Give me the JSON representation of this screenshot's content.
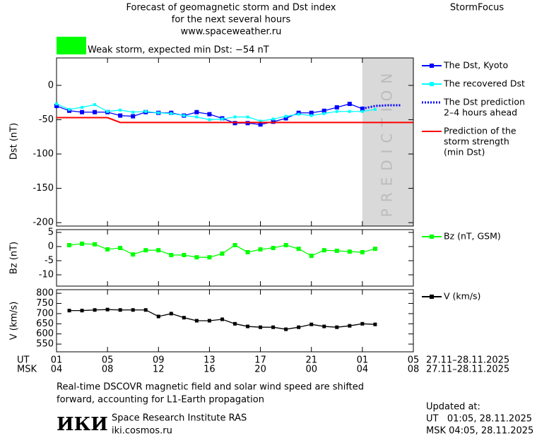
{
  "header": {
    "title_lines": [
      "Forecast of geomagnetic storm and Dst index",
      "for the next several hours",
      "www.spaceweather.ru"
    ],
    "brand": "StormFocus"
  },
  "status": {
    "color": "#00ff00",
    "text": "Weak storm, expected min Dst: −54 nT"
  },
  "chart_data": [
    {
      "type": "line",
      "ylabel": "Dst (nT)",
      "xlim": [
        0,
        28
      ],
      "ylim": [
        -205,
        40
      ],
      "yticks": [
        0,
        -50,
        -100,
        -150,
        -200
      ],
      "shade": {
        "xlim": [
          24,
          28
        ],
        "color": "#d9d9d9",
        "label": "PREDICTION"
      },
      "series": [
        {
          "name": "The Dst, Kyoto",
          "color": "#0000ff",
          "marker_size": 6,
          "x": [
            0,
            1,
            2,
            3,
            4,
            5,
            6,
            7,
            8,
            9,
            10,
            11,
            12,
            13,
            14,
            15,
            16,
            17,
            18,
            19,
            20,
            21,
            22,
            23,
            24
          ],
          "values": [
            -30,
            -37,
            -39,
            -39,
            -39,
            -44,
            -45,
            -39,
            -40,
            -40,
            -44,
            -39,
            -42,
            -48,
            -55,
            -55,
            -57,
            -53,
            -48,
            -40,
            -40,
            -37,
            -32,
            -27,
            -34
          ]
        },
        {
          "name": "The recovered Dst",
          "color": "#00ffff",
          "marker_size": 4,
          "x": [
            0,
            1,
            2,
            3,
            4,
            5,
            6,
            7,
            8,
            9,
            10,
            11,
            12,
            13,
            14,
            15,
            16,
            17,
            18,
            19,
            20,
            21,
            22,
            23,
            24,
            25
          ],
          "values": [
            -27,
            -35,
            -32,
            -28,
            -38,
            -36,
            -39,
            -38,
            -40,
            -41,
            -44,
            -46,
            -50,
            -49,
            -46,
            -46,
            -52,
            -49,
            -45,
            -42,
            -44,
            -41,
            -38,
            -38,
            -38,
            -35
          ]
        },
        {
          "name": [
            "The Dst prediction",
            "2–4 hours ahead"
          ],
          "color": "#0000ff",
          "dashed": true,
          "x": [
            24,
            25,
            26,
            27
          ],
          "values": [
            -34,
            -30,
            -29,
            -29
          ]
        },
        {
          "name": [
            "Prediction of the",
            "storm strength",
            "(min Dst)"
          ],
          "color": "#ff0000",
          "x": [
            0,
            4,
            5,
            28
          ],
          "values": [
            -47,
            -47,
            -54,
            -54
          ]
        }
      ]
    },
    {
      "type": "line",
      "ylabel": "Bz (nT)",
      "xlim": [
        0,
        28
      ],
      "ylim": [
        -14,
        6
      ],
      "yticks": [
        5,
        0,
        -5,
        -10
      ],
      "series": [
        {
          "name": "Bz (nT, GSM)",
          "color": "#00ff00",
          "marker_size": 6,
          "x": [
            1,
            2,
            3,
            4,
            5,
            6,
            7,
            8,
            9,
            10,
            11,
            12,
            13,
            14,
            15,
            16,
            17,
            18,
            19,
            20,
            21,
            22,
            23,
            24,
            25
          ],
          "values": [
            0.5,
            1,
            0.8,
            -1,
            -0.5,
            -2.8,
            -1.3,
            -1.3,
            -3,
            -3,
            -3.8,
            -3.8,
            -2.5,
            0.5,
            -2,
            -1,
            -0.5,
            0.5,
            -0.8,
            -3.3,
            -1.3,
            -1.5,
            -1.8,
            -2,
            -0.8
          ]
        }
      ]
    },
    {
      "type": "line",
      "ylabel": "V (km/s)",
      "xlim": [
        0,
        28
      ],
      "ylim": [
        512,
        818
      ],
      "yticks": [
        800,
        750,
        700,
        650,
        600,
        550
      ],
      "xticks": [
        {
          "value": 0,
          "label": "01"
        },
        {
          "value": 4,
          "label": "05"
        },
        {
          "value": 8,
          "label": "09"
        },
        {
          "value": 12,
          "label": "13"
        },
        {
          "value": 16,
          "label": "17"
        },
        {
          "value": 20,
          "label": "21"
        },
        {
          "value": 24,
          "label": "01"
        },
        {
          "value": 28,
          "label": "05"
        }
      ],
      "msk_labels": [
        "04",
        "08",
        "12",
        "16",
        "20",
        "00",
        "04",
        "08"
      ],
      "series": [
        {
          "name": "V (km/s)",
          "color": "#000000",
          "marker_size": 5,
          "x": [
            1,
            2,
            3,
            4,
            5,
            6,
            7,
            8,
            9,
            10,
            11,
            12,
            13,
            14,
            15,
            16,
            17,
            18,
            19,
            20,
            21,
            22,
            23,
            24,
            25
          ],
          "values": [
            715,
            715,
            718,
            720,
            718,
            718,
            718,
            686,
            700,
            680,
            665,
            665,
            672,
            650,
            637,
            633,
            633,
            623,
            633,
            647,
            637,
            633,
            640,
            650,
            647
          ]
        }
      ]
    }
  ],
  "time_axis": {
    "ut": "UT",
    "msk": "MSK",
    "ut_range": "27.11–28.11.2025",
    "msk_range": "27.11–28.11.2025"
  },
  "footer": {
    "note_lines": [
      "Real-time DSCOVR magnetic field and solar wind speed are shifted",
      "forward, accounting for L1-Earth propagation"
    ],
    "logo": "ИКИ",
    "institute": "Space Research Institute RAS",
    "site": "iki.cosmos.ru",
    "updated_label": "Updated at:",
    "updated_ut": "UT   01:05, 28.11.2025",
    "updated_msk": "MSK 04:05, 28.11.2025"
  }
}
